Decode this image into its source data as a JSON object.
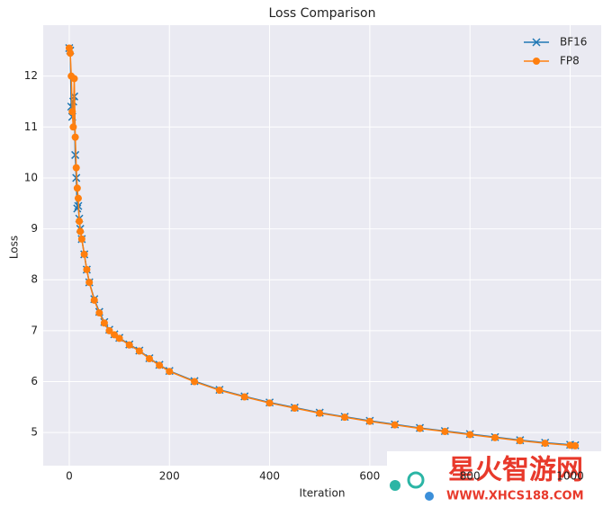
{
  "chart_data": {
    "type": "line",
    "title": "Loss Comparison",
    "xlabel": "Iteration",
    "ylabel": "Loss",
    "x": [
      0,
      2,
      4,
      6,
      8,
      10,
      12,
      14,
      16,
      18,
      20,
      22,
      25,
      30,
      35,
      40,
      50,
      60,
      70,
      80,
      90,
      100,
      120,
      140,
      160,
      180,
      200,
      250,
      300,
      350,
      400,
      450,
      500,
      550,
      600,
      650,
      700,
      750,
      800,
      850,
      900,
      950,
      1000,
      1010
    ],
    "series": [
      {
        "name": "BF16",
        "color": "#1f77b4",
        "marker": "x",
        "values": [
          12.55,
          12.5,
          11.4,
          11.2,
          11.5,
          11.6,
          10.45,
          10.0,
          9.4,
          9.45,
          9.2,
          9.0,
          8.8,
          8.5,
          8.2,
          7.95,
          7.62,
          7.37,
          7.17,
          7.02,
          6.93,
          6.86,
          6.73,
          6.61,
          6.46,
          6.33,
          6.21,
          6.01,
          5.84,
          5.71,
          5.59,
          5.49,
          5.39,
          5.31,
          5.23,
          5.16,
          5.09,
          5.03,
          4.97,
          4.91,
          4.85,
          4.8,
          4.76,
          4.75
        ]
      },
      {
        "name": "FP8",
        "color": "#ff7f0e",
        "marker": "o",
        "values": [
          12.55,
          12.45,
          12.0,
          11.3,
          11.0,
          11.95,
          10.8,
          10.2,
          9.8,
          9.6,
          9.15,
          8.95,
          8.8,
          8.5,
          8.2,
          7.95,
          7.6,
          7.35,
          7.15,
          7.0,
          6.92,
          6.85,
          6.72,
          6.6,
          6.45,
          6.32,
          6.2,
          6.0,
          5.83,
          5.7,
          5.58,
          5.48,
          5.38,
          5.3,
          5.22,
          5.15,
          5.08,
          5.02,
          4.96,
          4.9,
          4.84,
          4.79,
          4.75,
          4.74
        ]
      }
    ],
    "xlim": [
      -52,
      1062
    ],
    "ylim": [
      4.35,
      13.0
    ],
    "xticks": [
      0,
      200,
      400,
      600,
      800,
      1000
    ],
    "yticks": [
      5,
      6,
      7,
      8,
      9,
      10,
      11,
      12
    ],
    "grid": true,
    "legend": "upper right",
    "watermark": [
      "星火智游网",
      "WWW.XHCS188.COM"
    ]
  }
}
